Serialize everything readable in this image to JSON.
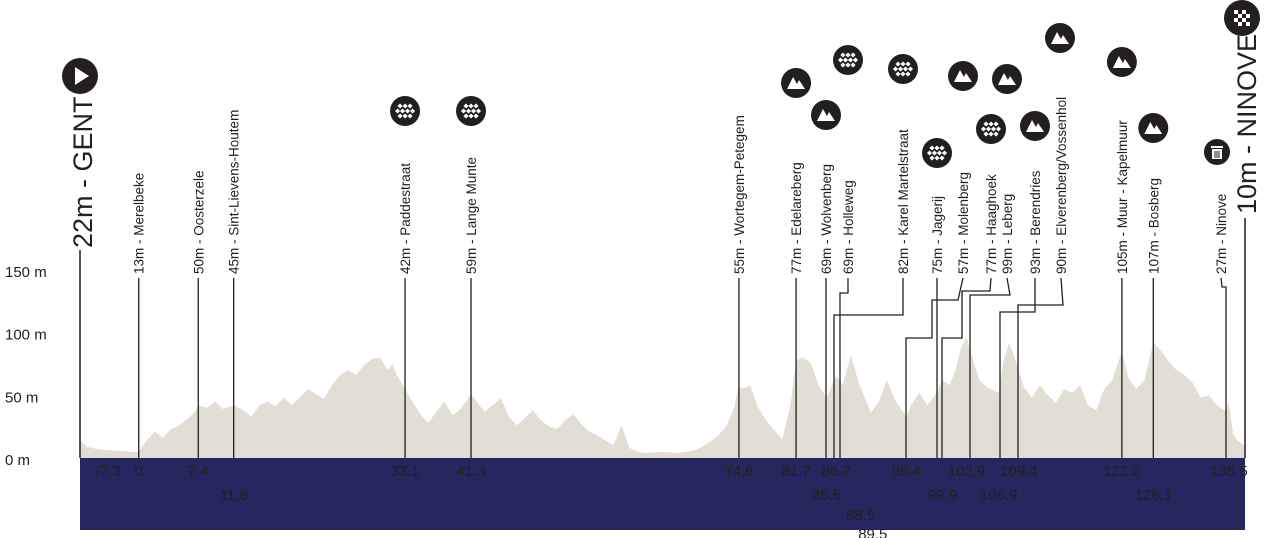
{
  "chart_data": {
    "type": "area",
    "title": "",
    "xlabel": "",
    "ylabel": "",
    "ylim": [
      0,
      150
    ],
    "xlim": [
      -7.3,
      137.5
    ],
    "y_ticks": [
      "150 m",
      "100 m",
      "50 m",
      "0 m"
    ],
    "y_tick_values": [
      150,
      100,
      50,
      0
    ],
    "grid": false,
    "colors": {
      "profile": "#e2ded6",
      "band": "#25275e",
      "ink": "#231f20",
      "marker": "#231f20"
    },
    "start": {
      "label": "22m - GENT",
      "km": -7.3,
      "km_label": "-7.3",
      "icon": "start-icon"
    },
    "finish": {
      "label": "10m - NINOVE",
      "km": 137.5,
      "icon": "finish-flag-icon"
    },
    "profile": [
      [
        -7.3,
        14
      ],
      [
        -6.5,
        9
      ],
      [
        -5,
        7
      ],
      [
        -3,
        6
      ],
      [
        -1,
        5
      ],
      [
        0,
        5
      ],
      [
        1,
        14
      ],
      [
        2,
        21
      ],
      [
        3,
        16
      ],
      [
        4,
        23
      ],
      [
        5,
        26
      ],
      [
        6,
        31
      ],
      [
        7,
        37
      ],
      [
        7.4,
        42
      ],
      [
        8.5,
        40
      ],
      [
        9.5,
        45
      ],
      [
        10.5,
        39
      ],
      [
        11.8,
        42
      ],
      [
        13,
        38
      ],
      [
        14,
        33
      ],
      [
        15,
        42
      ],
      [
        16,
        45
      ],
      [
        17,
        41
      ],
      [
        18,
        48
      ],
      [
        19,
        42
      ],
      [
        20,
        48
      ],
      [
        21,
        55
      ],
      [
        22,
        51
      ],
      [
        23,
        47
      ],
      [
        24,
        58
      ],
      [
        25,
        66
      ],
      [
        26,
        70
      ],
      [
        27,
        66
      ],
      [
        28,
        74
      ],
      [
        29,
        79
      ],
      [
        30,
        80
      ],
      [
        31,
        70
      ],
      [
        31.5,
        75
      ],
      [
        32,
        67
      ],
      [
        33.1,
        55
      ],
      [
        34,
        45
      ],
      [
        35,
        35
      ],
      [
        36,
        28
      ],
      [
        37,
        37
      ],
      [
        38,
        45
      ],
      [
        39,
        34
      ],
      [
        40,
        39
      ],
      [
        41.3,
        51
      ],
      [
        42,
        45
      ],
      [
        43,
        37
      ],
      [
        44,
        42
      ],
      [
        45,
        48
      ],
      [
        46,
        33
      ],
      [
        47,
        26
      ],
      [
        48,
        32
      ],
      [
        49,
        38
      ],
      [
        50,
        30
      ],
      [
        51,
        25
      ],
      [
        52,
        23
      ],
      [
        53,
        30
      ],
      [
        54,
        35
      ],
      [
        55,
        27
      ],
      [
        56,
        21
      ],
      [
        57,
        18
      ],
      [
        58,
        14
      ],
      [
        59,
        10
      ],
      [
        60,
        26
      ],
      [
        61,
        8
      ],
      [
        62,
        5
      ],
      [
        63,
        4
      ],
      [
        65,
        5
      ],
      [
        67,
        4
      ],
      [
        69,
        6
      ],
      [
        70,
        9
      ],
      [
        71,
        13
      ],
      [
        72,
        18
      ],
      [
        73,
        25
      ],
      [
        74,
        40
      ],
      [
        74.6,
        58
      ],
      [
        75,
        55
      ],
      [
        76,
        58
      ],
      [
        77,
        40
      ],
      [
        78,
        30
      ],
      [
        79,
        22
      ],
      [
        80,
        15
      ],
      [
        81,
        42
      ],
      [
        81.7,
        78
      ],
      [
        82.5,
        80
      ],
      [
        83.5,
        76
      ],
      [
        84.5,
        58
      ],
      [
        85.5,
        48
      ],
      [
        86.7,
        66
      ],
      [
        87.5,
        58
      ],
      [
        88.5,
        82
      ],
      [
        89.5,
        60
      ],
      [
        90,
        52
      ],
      [
        91,
        36
      ],
      [
        92,
        45
      ],
      [
        93,
        62
      ],
      [
        94,
        46
      ],
      [
        95.4,
        33
      ],
      [
        96,
        42
      ],
      [
        97,
        52
      ],
      [
        98,
        42
      ],
      [
        99,
        50
      ],
      [
        99.9,
        62
      ],
      [
        100.8,
        58
      ],
      [
        101.5,
        70
      ],
      [
        102.2,
        88
      ],
      [
        102.9,
        96
      ],
      [
        103.5,
        82
      ],
      [
        104.5,
        62
      ],
      [
        105.5,
        56
      ],
      [
        106.9,
        52
      ],
      [
        107.5,
        78
      ],
      [
        108.2,
        92
      ],
      [
        109.4,
        70
      ],
      [
        110,
        57
      ],
      [
        111,
        48
      ],
      [
        112,
        58
      ],
      [
        113,
        50
      ],
      [
        114,
        44
      ],
      [
        115,
        55
      ],
      [
        116,
        52
      ],
      [
        117,
        58
      ],
      [
        118,
        42
      ],
      [
        119,
        38
      ],
      [
        120,
        55
      ],
      [
        121,
        62
      ],
      [
        122.2,
        85
      ],
      [
        123,
        64
      ],
      [
        124,
        55
      ],
      [
        125,
        62
      ],
      [
        126.1,
        92
      ],
      [
        127,
        86
      ],
      [
        128,
        77
      ],
      [
        129,
        70
      ],
      [
        130,
        66
      ],
      [
        131,
        60
      ],
      [
        132,
        48
      ],
      [
        133,
        50
      ],
      [
        134,
        42
      ],
      [
        135,
        38
      ],
      [
        135.5,
        44
      ],
      [
        136,
        20
      ],
      [
        136.5,
        14
      ],
      [
        137.5,
        10
      ]
    ],
    "points": [
      {
        "km": 0,
        "km_label": "0",
        "label": "13m - Merelbeke",
        "icon": "",
        "label_top": 150,
        "row": 0
      },
      {
        "km": 7.4,
        "km_label": "7.4",
        "label": "50m - Oosterzele",
        "icon": "",
        "label_top": 150,
        "row": 0
      },
      {
        "km": 11.8,
        "km_label": "11.8",
        "label": "45m - Sint-Lievens-Houtem",
        "icon": "",
        "label_top": 70,
        "row": 1
      },
      {
        "km": 33.1,
        "km_label": "33.1",
        "label": "42m - Paddestraat",
        "icon": "cobbles-icon",
        "label_top": 135,
        "icon_y": 111,
        "row": 0
      },
      {
        "km": 41.3,
        "km_label": "41.3",
        "label": "59m - Lange Munte",
        "icon": "cobbles-icon",
        "label_top": 135,
        "icon_y": 111,
        "row": 0
      },
      {
        "km": 74.6,
        "km_label": "74.6",
        "label": "55m - Wortegem-Petegem",
        "icon": "",
        "label_top": 80,
        "row": 0
      },
      {
        "km": 81.7,
        "km_label": "81.7",
        "label": "77m - Edelareberg",
        "icon": "climb-icon",
        "label_top": 104,
        "icon_y": 83,
        "row": 0
      },
      {
        "km": 85.5,
        "km_label": "85.5",
        "label": "69m - Wolvenberg",
        "icon": "climb-icon",
        "label_top": 136,
        "icon_y": 115,
        "row": 1
      },
      {
        "km": 86.7,
        "km_label": "86.7",
        "label": "69m - Holleweg",
        "icon": "cobbles-icon",
        "label_top": 82,
        "icon_y": 60,
        "row": 0
      },
      {
        "km": 88.5,
        "km_label": "88.5",
        "label": "82m - Karel Martelstraat",
        "icon": "cobbles-icon",
        "label_top": 92,
        "icon_y": 69,
        "row": 2
      },
      {
        "km": 89.5,
        "km_label": "89.5",
        "label": "75m - Jagerij",
        "icon": "cobbles-icon",
        "label_top": 174,
        "icon_y": 153,
        "row": 3
      },
      {
        "km": 95.4,
        "km_label": "95.4",
        "label": "57m - Molenberg",
        "icon": "climb-icon",
        "label_top": 97,
        "icon_y": 76,
        "row": 0
      },
      {
        "km": 99.9,
        "km_label": "99.9",
        "label": "77m - Haaghoek",
        "icon": "cobbles-icon",
        "label_top": 150,
        "icon_y": 129,
        "row": 1
      },
      {
        "km": 102.9,
        "km_label": "102.9",
        "label": "99m - Leberg",
        "icon": "climb-icon",
        "label_top": 100,
        "icon_y": 79,
        "row": 0
      },
      {
        "km": 106.9,
        "km_label": "106.9",
        "label": "93m - Berendries",
        "icon": "climb-icon",
        "label_top": 147,
        "icon_y": 126,
        "row": 1
      },
      {
        "km": 109.4,
        "km_label": "109.4",
        "label": "90m - Elverenberg/Vossenhol",
        "icon": "climb-icon",
        "label_top": 60,
        "icon_y": 38,
        "row": 0
      },
      {
        "km": 122.2,
        "km_label": "122.2",
        "label": "105m - Muur - Kapelmuur",
        "icon": "climb-icon",
        "label_top": 85,
        "icon_y": 62,
        "row": 0
      },
      {
        "km": 126.1,
        "km_label": "126.1",
        "label": "107m - Bosberg",
        "icon": "climb-icon",
        "label_top": 150,
        "icon_y": 128,
        "row": 1
      },
      {
        "km": 135.5,
        "km_label": "135.5",
        "label": "27m - Ninove",
        "icon": "bin-icon",
        "label_top": 175,
        "icon_y": 152,
        "row": 0
      }
    ]
  }
}
